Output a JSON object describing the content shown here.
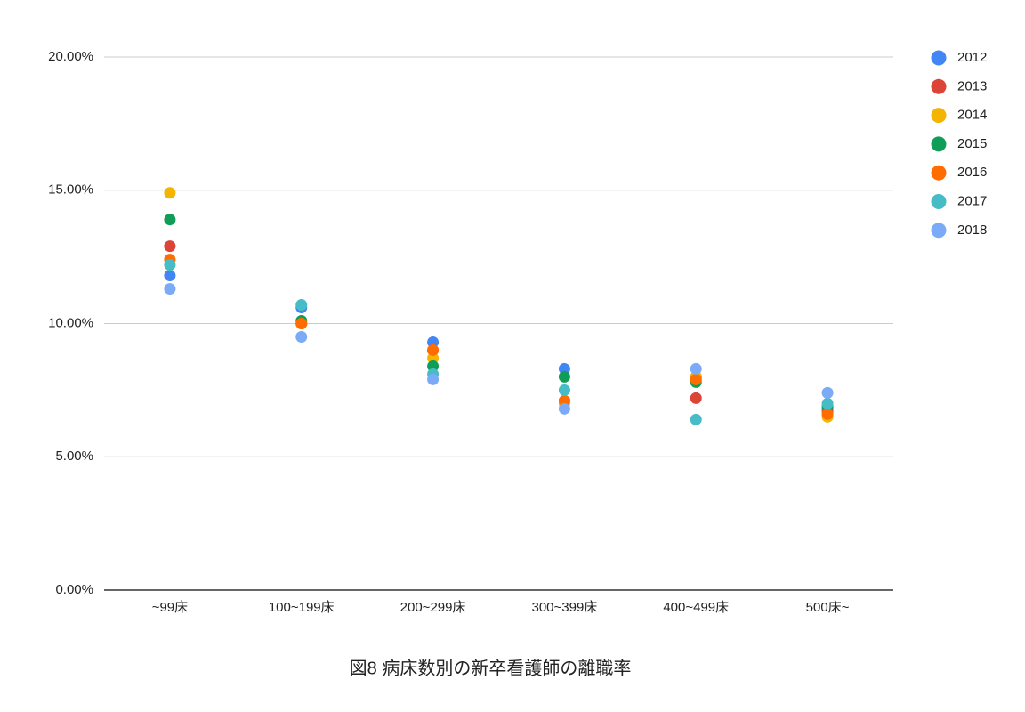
{
  "chart_data": {
    "type": "scatter",
    "title": "図8 病床数別の新卒看護師の離職率",
    "categories": [
      "~99床",
      "100~199床",
      "200~299床",
      "300~399床",
      "400~499床",
      "500床~"
    ],
    "series": [
      {
        "name": "2012",
        "color": "#4285f4",
        "values": [
          11.8,
          10.6,
          9.3,
          8.3,
          8.0,
          6.8
        ]
      },
      {
        "name": "2013",
        "color": "#db4437",
        "values": [
          12.9,
          10.0,
          9.0,
          7.1,
          7.2,
          6.7
        ]
      },
      {
        "name": "2014",
        "color": "#f4b400",
        "values": [
          14.9,
          10.0,
          8.7,
          7.0,
          8.0,
          6.5
        ]
      },
      {
        "name": "2015",
        "color": "#0f9d58",
        "values": [
          13.9,
          10.1,
          8.4,
          8.0,
          7.8,
          6.9
        ]
      },
      {
        "name": "2016",
        "color": "#ff6d01",
        "values": [
          12.4,
          10.0,
          9.0,
          7.1,
          7.9,
          6.6
        ]
      },
      {
        "name": "2017",
        "color": "#46bdc6",
        "values": [
          12.2,
          10.7,
          8.1,
          7.5,
          6.4,
          7.0
        ]
      },
      {
        "name": "2018",
        "color": "#7baaf7",
        "values": [
          11.3,
          9.5,
          7.9,
          6.8,
          8.3,
          7.4
        ]
      }
    ],
    "ylim": [
      0,
      20
    ],
    "yticks": [
      {
        "value": 0,
        "label": "0.00%"
      },
      {
        "value": 5,
        "label": "5.00%"
      },
      {
        "value": 10,
        "label": "10.00%"
      },
      {
        "value": 15,
        "label": "15.00%"
      },
      {
        "value": 20,
        "label": "20.00%"
      }
    ],
    "grid": true,
    "legend": "right"
  }
}
